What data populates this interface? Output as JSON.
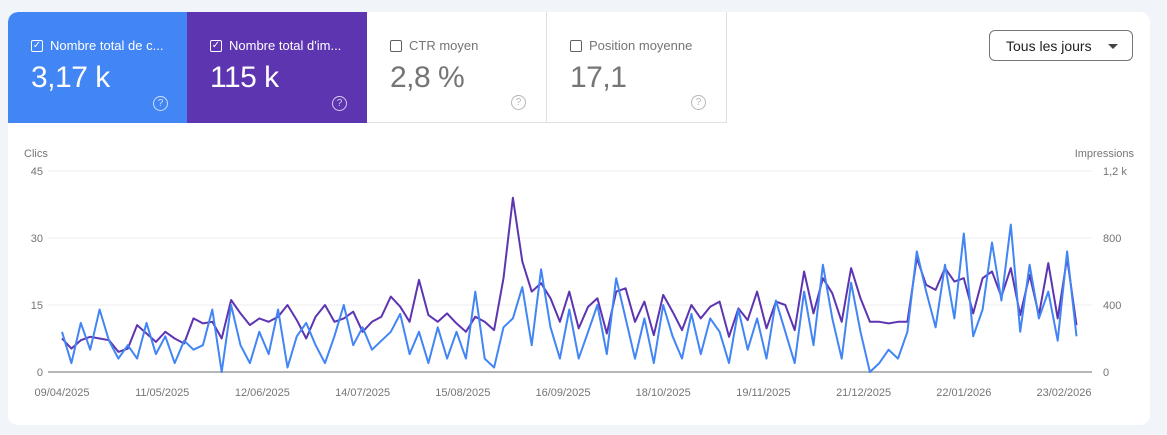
{
  "metrics": [
    {
      "label": "Nombre total de c...",
      "value": "3,17 k",
      "checked": true,
      "color": "#4285f4"
    },
    {
      "label": "Nombre total d'im...",
      "value": "115 k",
      "checked": true,
      "color": "#5e35b1"
    },
    {
      "label": "CTR moyen",
      "value": "2,8 %",
      "checked": false
    },
    {
      "label": "Position moyenne",
      "value": "17,1",
      "checked": false
    }
  ],
  "help_icon": "?",
  "date_filter": {
    "selected": "Tous les jours"
  },
  "chart_data": {
    "type": "line",
    "left_axis": {
      "label": "Clics",
      "ticks": [
        "45",
        "30",
        "15",
        "0"
      ],
      "range": [
        0,
        45
      ]
    },
    "right_axis": {
      "label": "Impressions",
      "ticks": [
        "1,2 k",
        "800",
        "400",
        "0"
      ],
      "range": [
        0,
        1200
      ]
    },
    "x_ticks": [
      "09/04/2025",
      "11/05/2025",
      "12/06/2025",
      "14/07/2025",
      "15/08/2025",
      "16/09/2025",
      "18/10/2025",
      "19/11/2025",
      "21/12/2025",
      "22/01/2026",
      "23/02/2026"
    ],
    "grid": true,
    "x": [
      "09/04/2025",
      "12/04/2025",
      "15/04/2025",
      "18/04/2025",
      "21/04/2025",
      "24/04/2025",
      "27/04/2025",
      "30/04/2025",
      "03/05/2025",
      "06/05/2025",
      "09/05/2025",
      "12/05/2025",
      "15/05/2025",
      "18/05/2025",
      "21/05/2025",
      "24/05/2025",
      "27/05/2025",
      "30/05/2025",
      "02/06/2025",
      "05/06/2025",
      "08/06/2025",
      "11/06/2025",
      "14/06/2025",
      "17/06/2025",
      "20/06/2025",
      "23/06/2025",
      "26/06/2025",
      "29/06/2025",
      "02/07/2025",
      "05/07/2025",
      "08/07/2025",
      "11/07/2025",
      "14/07/2025",
      "17/07/2025",
      "20/07/2025",
      "23/07/2025",
      "26/07/2025",
      "29/07/2025",
      "01/08/2025",
      "04/08/2025",
      "07/08/2025",
      "10/08/2025",
      "13/08/2025",
      "16/08/2025",
      "19/08/2025",
      "22/08/2025",
      "25/08/2025",
      "28/08/2025",
      "31/08/2025",
      "03/09/2025",
      "06/09/2025",
      "09/09/2025",
      "12/09/2025",
      "15/09/2025",
      "18/09/2025",
      "21/09/2025",
      "24/09/2025",
      "27/09/2025",
      "30/09/2025",
      "03/10/2025",
      "06/10/2025",
      "09/10/2025",
      "12/10/2025",
      "15/10/2025",
      "18/10/2025",
      "21/10/2025",
      "24/10/2025",
      "27/10/2025",
      "30/10/2025",
      "02/11/2025",
      "05/11/2025",
      "08/11/2025",
      "11/11/2025",
      "14/11/2025",
      "17/11/2025",
      "20/11/2025",
      "23/11/2025",
      "26/11/2025",
      "29/11/2025",
      "02/12/2025",
      "05/12/2025",
      "08/12/2025",
      "11/12/2025",
      "14/12/2025",
      "17/12/2025",
      "20/12/2025",
      "23/12/2025",
      "26/12/2025",
      "29/12/2025",
      "01/01/2026",
      "04/01/2026",
      "07/01/2026",
      "10/01/2026",
      "13/01/2026",
      "16/01/2026",
      "19/01/2026",
      "22/01/2026",
      "25/01/2026",
      "28/01/2026",
      "31/01/2026",
      "03/02/2026",
      "06/02/2026",
      "09/02/2026",
      "12/02/2026",
      "15/02/2026",
      "18/02/2026",
      "21/02/2026",
      "24/02/2026",
      "27/02/2026"
    ],
    "series": [
      {
        "name": "Impressions",
        "axis": "right",
        "color": "#5e35b1",
        "values": [
          200,
          140,
          190,
          210,
          200,
          190,
          120,
          140,
          280,
          230,
          180,
          240,
          200,
          170,
          320,
          290,
          300,
          200,
          430,
          350,
          280,
          320,
          300,
          330,
          400,
          310,
          200,
          330,
          400,
          300,
          320,
          360,
          240,
          300,
          330,
          450,
          390,
          300,
          550,
          340,
          300,
          350,
          290,
          240,
          330,
          300,
          250,
          560,
          1040,
          660,
          480,
          530,
          440,
          300,
          480,
          260,
          390,
          440,
          230,
          480,
          500,
          300,
          420,
          220,
          460,
          360,
          250,
          400,
          320,
          390,
          420,
          210,
          380,
          310,
          480,
          260,
          420,
          400,
          250,
          600,
          350,
          560,
          470,
          300,
          620,
          440,
          300,
          300,
          290,
          300,
          300,
          680,
          520,
          490,
          620,
          540,
          560,
          350,
          560,
          600,
          450,
          620,
          340,
          580,
          340,
          650,
          320,
          680,
          280
        ]
      },
      {
        "name": "Clics",
        "axis": "left",
        "color": "#4285f4",
        "values": [
          9,
          2,
          11,
          5,
          14,
          7,
          3,
          6,
          3,
          11,
          4,
          8,
          2,
          7,
          5,
          6,
          14,
          0,
          15,
          6,
          2,
          9,
          4,
          14,
          1,
          8,
          11,
          6,
          2,
          8,
          15,
          6,
          10,
          5,
          7,
          9,
          13,
          4,
          9,
          2,
          10,
          3,
          9,
          3,
          18,
          3,
          1,
          10,
          12,
          19,
          6,
          23,
          10,
          3,
          14,
          3,
          9,
          15,
          4,
          21,
          12,
          3,
          12,
          2,
          15,
          8,
          3,
          13,
          4,
          12,
          9,
          2,
          14,
          5,
          12,
          3,
          16,
          9,
          2,
          18,
          6,
          24,
          12,
          3,
          20,
          9,
          0,
          2,
          5,
          3,
          9,
          27,
          18,
          10,
          24,
          12,
          31,
          8,
          14,
          29,
          16,
          33,
          9,
          24,
          12,
          18,
          7,
          27,
          8
        ]
      }
    ]
  }
}
